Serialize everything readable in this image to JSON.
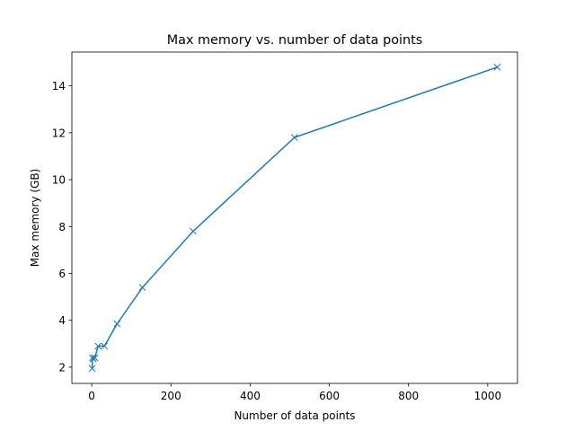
{
  "chart_data": {
    "type": "line",
    "title": "Max memory vs. number of data points",
    "x_label": "Number of data points",
    "y_label": "Max memory (GB)",
    "series": [
      {
        "color": "#1f77b4",
        "marker": "x",
        "x": [
          1,
          2,
          4,
          8,
          16,
          32,
          64,
          128,
          256,
          512,
          1024
        ],
        "values": [
          1.95,
          2.4,
          2.35,
          2.4,
          2.9,
          2.9,
          3.85,
          5.4,
          7.8,
          11.8,
          14.8
        ]
      }
    ],
    "xlim": [
      -50.15,
      1075.15
    ],
    "xticks": [
      0,
      200,
      400,
      600,
      800,
      1000
    ],
    "ylim": [
      1.3075,
      15.4425
    ],
    "yticks": [
      2,
      4,
      6,
      8,
      10,
      12,
      14
    ],
    "grid": false
  }
}
